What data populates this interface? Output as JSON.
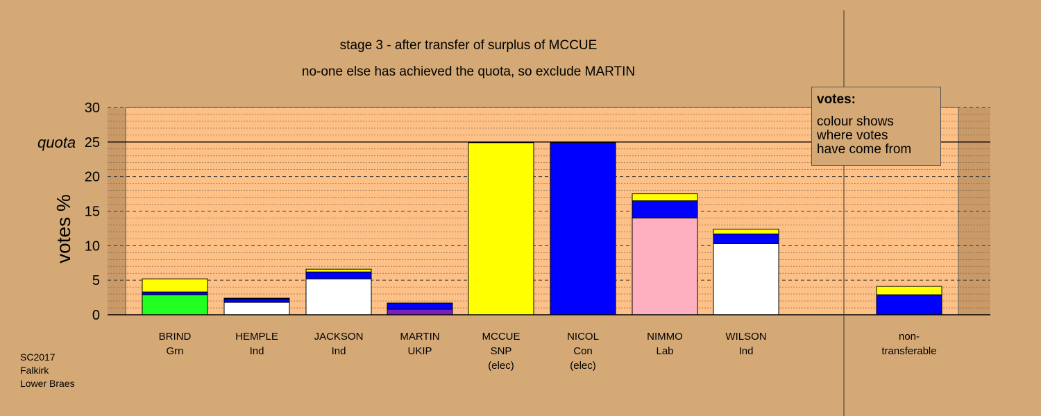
{
  "title_lines": [
    "stage 3 - after transfer of surplus of MCCUE",
    "no-one else has achieved the quota, so exclude MARTIN"
  ],
  "legend": {
    "title": "votes:",
    "lines": [
      "colour shows",
      "where votes",
      "have come from"
    ]
  },
  "source_note": [
    "SC2017",
    "Falkirk",
    "Lower Braes"
  ],
  "colors": {
    "background": "#d4a976",
    "plot_area": "#fdc086",
    "Grn": "#22ff22",
    "SNP": "#ffff00",
    "Con": "#0000ff",
    "Lab": "#ffb0c0",
    "Ind": "#ffffff",
    "UKIP": "#7a1fc0"
  },
  "chart_data": {
    "type": "bar",
    "stacked": true,
    "ylabel": "votes %",
    "ylim": [
      0,
      30
    ],
    "yticks": [
      0,
      5,
      10,
      15,
      20,
      25,
      30
    ],
    "quota": 25,
    "quota_label": "quota",
    "grid": true,
    "legend_position": "top-right",
    "categories": [
      [
        "BRIND",
        "Grn"
      ],
      [
        "HEMPLE",
        "Ind"
      ],
      [
        "JACKSON",
        "Ind"
      ],
      [
        "MARTIN",
        "UKIP"
      ],
      [
        "MCCUE",
        "SNP",
        "(elec)"
      ],
      [
        "NICOL",
        "Con",
        "(elec)"
      ],
      [
        "NIMMO",
        "Lab"
      ],
      [
        "WILSON",
        "Ind"
      ],
      [
        "non-",
        "transferable"
      ]
    ],
    "stacks": [
      [
        {
          "source": "Grn",
          "value": 2.9
        },
        {
          "source": "Con",
          "value": 0.4
        },
        {
          "source": "SNP",
          "value": 1.9
        }
      ],
      [
        {
          "source": "Ind",
          "value": 1.8
        },
        {
          "source": "Con",
          "value": 0.5
        },
        {
          "source": "SNP",
          "value": 0.1
        }
      ],
      [
        {
          "source": "Ind",
          "value": 5.2
        },
        {
          "source": "Con",
          "value": 1.0
        },
        {
          "source": "SNP",
          "value": 0.4
        }
      ],
      [
        {
          "source": "UKIP",
          "value": 0.8
        },
        {
          "source": "Con",
          "value": 0.9
        }
      ],
      [
        {
          "source": "SNP",
          "value": 24.9
        }
      ],
      [
        {
          "source": "Con",
          "value": 24.9
        }
      ],
      [
        {
          "source": "Lab",
          "value": 14.0
        },
        {
          "source": "Con",
          "value": 2.5
        },
        {
          "source": "SNP",
          "value": 1.0
        }
      ],
      [
        {
          "source": "Ind",
          "value": 10.3
        },
        {
          "source": "Con",
          "value": 1.4
        },
        {
          "source": "SNP",
          "value": 0.7
        }
      ],
      [
        {
          "source": "Con",
          "value": 2.9
        },
        {
          "source": "SNP",
          "value": 1.2
        }
      ]
    ]
  }
}
